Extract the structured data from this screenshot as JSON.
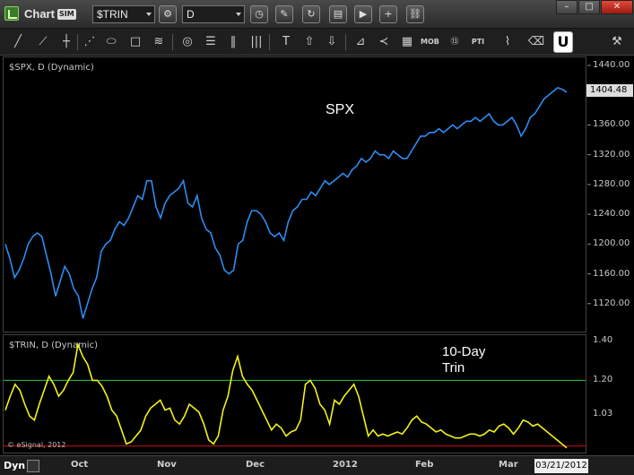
{
  "window": {
    "title": "Chart",
    "badge": "SIM",
    "symbol": "$TRIN",
    "interval": "D",
    "minimize": "–",
    "maximize": "□",
    "close": "✕"
  },
  "toolbar": {
    "icons": [
      "line-tool-icon",
      "ray-tool-icon",
      "fib-tool-icon",
      "ellipse-tool-icon",
      "rectangle-tool-icon",
      "channel-tool-icon",
      "cycle-tool-icon",
      "hline-tool-icon",
      "vline-tool-icon",
      "text-tool-icon",
      "arrow-up-icon",
      "arrow-down-icon",
      "gann-fan-icon",
      "speed-line-icon",
      "grid-tool-icon",
      "mob-icon",
      "circle-13-icon",
      "pti-icon",
      "trend-icon",
      "eraser-icon",
      "magnet-icon",
      "settings-icon"
    ],
    "mob_label": "MOB",
    "pti_label": "PTI"
  },
  "price_pane": {
    "label": "$SPX, D (Dynamic)",
    "annotation": "SPX",
    "last_value": "1404.48",
    "line_color": "#2d8cf0"
  },
  "trin_pane": {
    "label": "$TRIN, D (Dynamic)",
    "annotation_line1": "10-Day",
    "annotation_line2": "Trin",
    "line_color": "#f2f21a",
    "upper_line_color": "#2ecc40",
    "lower_line_color": "#d01010"
  },
  "copyright": "© eSignal, 2012",
  "xaxis": {
    "dyn_label": "Dyn",
    "months": [
      "Oct",
      "Nov",
      "Dec",
      "2012",
      "Feb",
      "Mar"
    ],
    "current_date": "03/21/2012"
  },
  "chart_data": [
    {
      "type": "line",
      "title": "SPX",
      "ylim": [
        1080,
        1440
      ],
      "y_ticks": [
        "1440.00",
        "1400.00",
        "1360.00",
        "1320.00",
        "1280.00",
        "1240.00",
        "1200.00",
        "1160.00",
        "1120.00"
      ],
      "x_labels": [
        "Oct",
        "Nov",
        "Dec",
        "2012",
        "Feb",
        "Mar"
      ],
      "series": [
        {
          "name": "$SPX",
          "values": [
            1200,
            1180,
            1155,
            1165,
            1180,
            1200,
            1210,
            1215,
            1210,
            1185,
            1160,
            1130,
            1150,
            1170,
            1160,
            1140,
            1130,
            1100,
            1120,
            1140,
            1155,
            1190,
            1200,
            1205,
            1220,
            1230,
            1225,
            1235,
            1250,
            1265,
            1260,
            1285,
            1285,
            1250,
            1235,
            1255,
            1265,
            1270,
            1275,
            1285,
            1255,
            1250,
            1265,
            1235,
            1220,
            1215,
            1195,
            1185,
            1165,
            1160,
            1165,
            1200,
            1205,
            1230,
            1245,
            1245,
            1240,
            1230,
            1215,
            1210,
            1215,
            1205,
            1230,
            1245,
            1250,
            1260,
            1260,
            1270,
            1265,
            1275,
            1285,
            1280,
            1285,
            1290,
            1295,
            1290,
            1300,
            1305,
            1315,
            1310,
            1315,
            1325,
            1320,
            1320,
            1315,
            1325,
            1320,
            1315,
            1315,
            1325,
            1335,
            1345,
            1345,
            1350,
            1350,
            1355,
            1350,
            1355,
            1360,
            1355,
            1360,
            1365,
            1365,
            1370,
            1365,
            1370,
            1375,
            1365,
            1360,
            1360,
            1365,
            1370,
            1360,
            1345,
            1355,
            1370,
            1375,
            1385,
            1395,
            1400,
            1405,
            1410,
            1408,
            1404
          ]
        }
      ]
    },
    {
      "type": "line",
      "title": "10-Day Trin",
      "ylim": [
        0.85,
        1.4
      ],
      "y_ticks": [
        "1.40",
        "1.20",
        "1.03"
      ],
      "reference_lines": [
        1.2,
        0.87
      ],
      "series": [
        {
          "name": "$TRIN",
          "values": [
            1.05,
            1.12,
            1.18,
            1.15,
            1.08,
            1.02,
            1.0,
            1.08,
            1.15,
            1.22,
            1.18,
            1.12,
            1.15,
            1.2,
            1.24,
            1.38,
            1.32,
            1.28,
            1.2,
            1.2,
            1.17,
            1.12,
            1.05,
            1.02,
            0.95,
            0.88,
            0.89,
            0.92,
            0.95,
            1.02,
            1.06,
            1.08,
            1.1,
            1.05,
            1.06,
            1.0,
            0.98,
            1.02,
            1.08,
            1.06,
            1.04,
            0.98,
            0.9,
            0.88,
            0.92,
            1.05,
            1.12,
            1.25,
            1.32,
            1.22,
            1.18,
            1.15,
            1.1,
            1.05,
            1.0,
            0.95,
            0.98,
            0.96,
            0.92,
            0.94,
            0.95,
            1.0,
            1.18,
            1.2,
            1.16,
            1.08,
            1.05,
            0.98,
            1.1,
            1.08,
            1.12,
            1.15,
            1.18,
            1.12,
            1.02,
            0.92,
            0.95,
            0.92,
            0.93,
            0.92,
            0.93,
            0.94,
            0.93,
            0.96,
            1.0,
            1.02,
            0.99,
            0.98,
            0.96,
            0.94,
            0.95,
            0.93,
            0.92,
            0.91,
            0.91,
            0.92,
            0.93,
            0.93,
            0.92,
            0.93,
            0.95,
            0.94,
            0.97,
            0.98,
            0.96,
            0.93,
            0.96,
            1.0,
            0.99,
            0.97,
            0.98,
            0.96,
            0.94,
            0.92,
            0.9,
            0.88,
            0.86
          ]
        }
      ]
    }
  ]
}
